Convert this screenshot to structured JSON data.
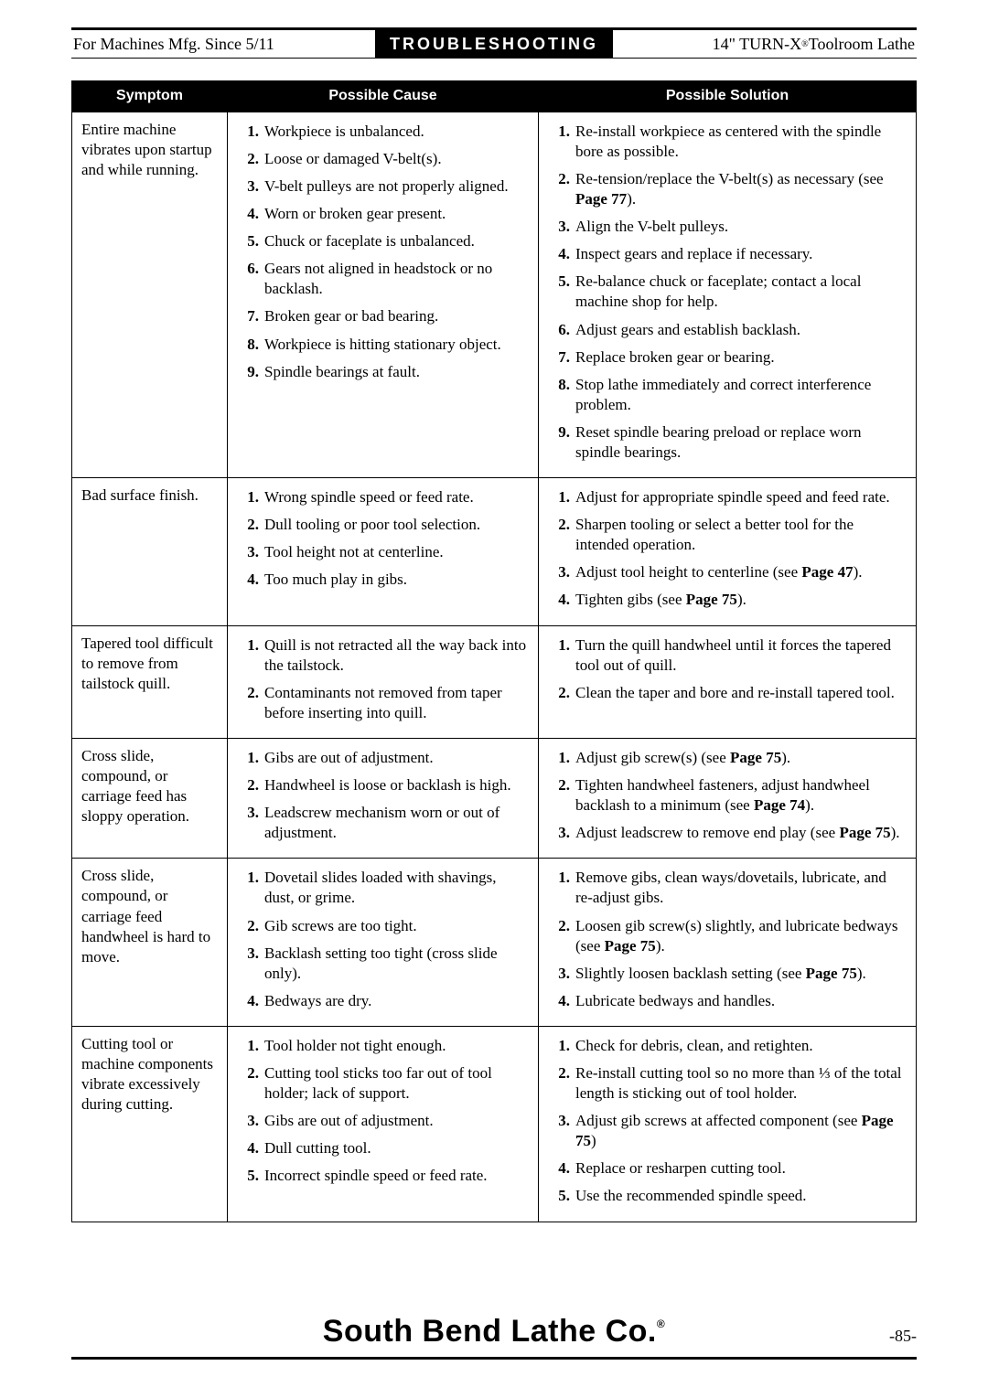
{
  "header": {
    "left": "For Machines Mfg. Since 5/11",
    "center": "TROUBLESHOOTING",
    "right_prefix": "14\" TURN-X",
    "right_suffix": " Toolroom Lathe"
  },
  "columns": {
    "symptom": "Symptom",
    "cause": "Possible Cause",
    "solution": "Possible Solution"
  },
  "rows": [
    {
      "symptom": "Entire machine vibrates upon startup and while running.",
      "causes": [
        {
          "t": "Workpiece is unbalanced."
        },
        {
          "t": "Loose or damaged V-belt(s)."
        },
        {
          "t": "V-belt pulleys are not properly aligned."
        },
        {
          "t": "Worn or broken gear present."
        },
        {
          "t": "Chuck or faceplate is unbalanced."
        },
        {
          "t": "Gears not aligned in headstock or no backlash."
        },
        {
          "t": "Broken gear or bad bearing."
        },
        {
          "t": "Workpiece is hitting stationary object."
        },
        {
          "t": "Spindle bearings at fault."
        }
      ],
      "solutions": [
        {
          "t": "Re-install workpiece as centered with the spindle bore as possible."
        },
        {
          "t": "Re-tension/replace the V-belt(s) as necessary (see ",
          "b": "Page 77",
          "a": ")."
        },
        {
          "t": "Align the V-belt pulleys."
        },
        {
          "t": "Inspect gears and replace if necessary."
        },
        {
          "t": "Re-balance chuck or faceplate; contact a local machine shop for help."
        },
        {
          "t": "Adjust gears and establish backlash."
        },
        {
          "t": "Replace broken gear or bearing."
        },
        {
          "t": "Stop lathe immediately and correct interference problem."
        },
        {
          "t": "Reset spindle bearing preload or replace worn spindle bearings."
        }
      ]
    },
    {
      "symptom": "Bad surface finish.",
      "causes": [
        {
          "t": "Wrong spindle speed or feed rate."
        },
        {
          "t": "Dull tooling or poor tool selection."
        },
        {
          "t": "Tool height not at centerline."
        },
        {
          "t": "Too much play in gibs."
        }
      ],
      "solutions": [
        {
          "t": "Adjust for appropriate spindle speed and feed rate."
        },
        {
          "t": "Sharpen tooling or select a better tool for the intended operation."
        },
        {
          "t": "Adjust tool height to centerline (see ",
          "b": "Page 47",
          "a": ")."
        },
        {
          "t": "Tighten gibs (see ",
          "b": "Page 75",
          "a": ")."
        }
      ]
    },
    {
      "symptom": "Tapered tool difficult to remove from tailstock quill.",
      "causes": [
        {
          "t": "Quill is not retracted all the way back into the tailstock."
        },
        {
          "t": "Contaminants not removed from taper before inserting into quill."
        }
      ],
      "solutions": [
        {
          "t": "Turn the quill handwheel until it forces the tapered tool out of quill."
        },
        {
          "t": "Clean the taper and bore and re-install tapered tool."
        }
      ]
    },
    {
      "symptom": "Cross slide, compound, or carriage feed has sloppy operation.",
      "causes": [
        {
          "t": "Gibs are out of adjustment."
        },
        {
          "t": "Handwheel is loose or backlash is high."
        },
        {
          "t": "Leadscrew mechanism worn or out of adjustment."
        }
      ],
      "solutions": [
        {
          "t": "Adjust gib screw(s) (see ",
          "b": "Page 75",
          "a": ")."
        },
        {
          "t": "Tighten handwheel fasteners, adjust handwheel backlash to a minimum (see ",
          "b": "Page 74",
          "a": ")."
        },
        {
          "t": "Adjust leadscrew to remove end play (see ",
          "b": "Page 75",
          "a": ")."
        }
      ]
    },
    {
      "symptom": "Cross slide, compound, or carriage feed handwheel is hard to move.",
      "causes": [
        {
          "t": "Dovetail slides loaded with shavings, dust, or grime."
        },
        {
          "t": "Gib screws are too tight."
        },
        {
          "t": "Backlash setting too tight (cross slide only)."
        },
        {
          "t": "Bedways are dry."
        }
      ],
      "solutions": [
        {
          "t": "Remove gibs, clean ways/dovetails, lubricate, and re-adjust gibs."
        },
        {
          "t": "Loosen gib screw(s) slightly, and lubricate bedways (see ",
          "b": "Page 75",
          "a": ")."
        },
        {
          "t": "Slightly loosen backlash setting (see ",
          "b": "Page 75",
          "a": ")."
        },
        {
          "t": "Lubricate bedways and handles."
        }
      ]
    },
    {
      "symptom": "Cutting tool or machine components vibrate excessively during cutting.",
      "causes": [
        {
          "t": "Tool holder not tight enough."
        },
        {
          "t": "Cutting tool sticks too far out of tool holder; lack of support."
        },
        {
          "t": "Gibs are out of adjustment."
        },
        {
          "t": "Dull cutting tool."
        },
        {
          "t": "Incorrect spindle speed or feed rate."
        }
      ],
      "solutions": [
        {
          "t": "Check for debris, clean, and retighten."
        },
        {
          "t": "Re-install cutting tool so no more than ⅓ of the total length is sticking out of tool holder."
        },
        {
          "t": "Adjust gib screws at affected component (see ",
          "b": "Page 75",
          "a": ")"
        },
        {
          "t": "Replace or resharpen cutting tool."
        },
        {
          "t": "Use the recommended spindle speed."
        }
      ]
    }
  ],
  "footer": {
    "brand": "South Bend Lathe Co.",
    "pagenum": "-85-"
  }
}
